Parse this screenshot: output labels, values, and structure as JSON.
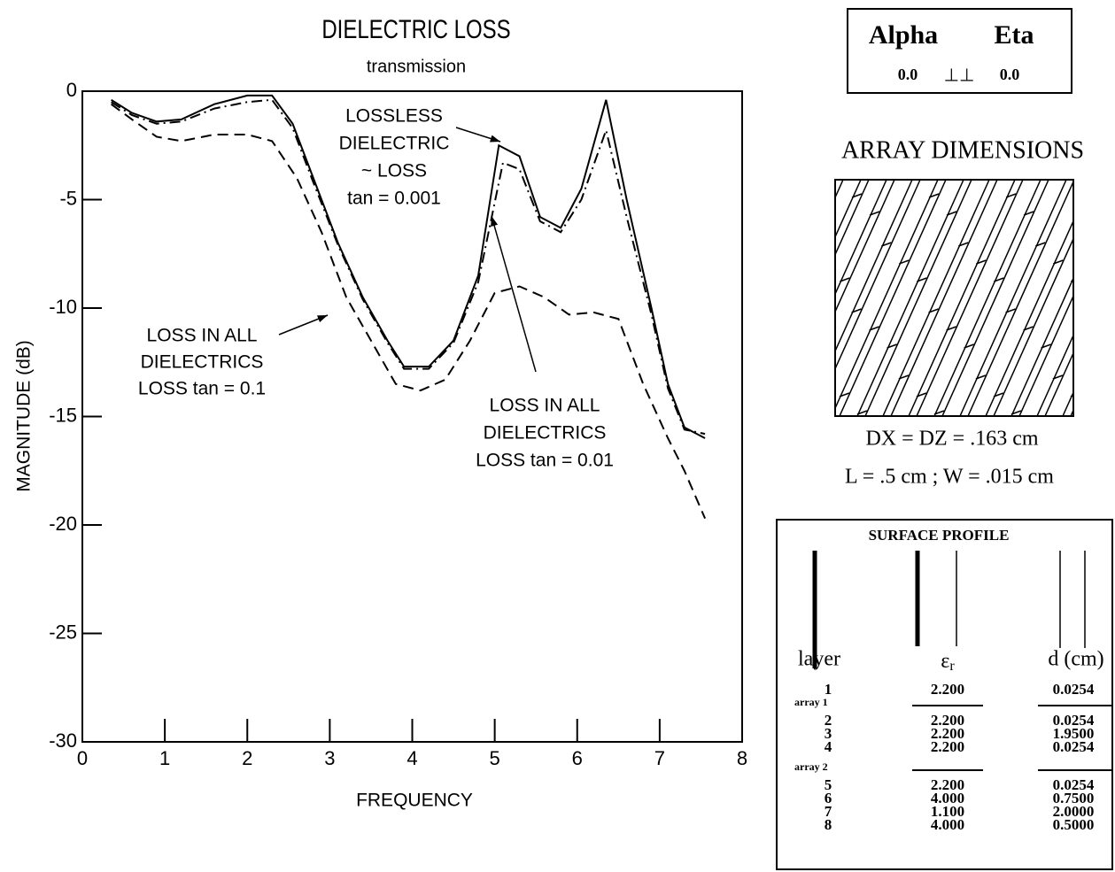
{
  "chart_data": {
    "type": "line",
    "title": "DIELECTRIC LOSS",
    "subtitle": "transmission",
    "x_label": "FREQUENCY",
    "y_label": "MAGNITUDE (dB)",
    "xlim": [
      0,
      8
    ],
    "xticks": [
      0,
      1,
      2,
      3,
      4,
      5,
      6,
      7,
      8
    ],
    "ylim": [
      -30,
      0
    ],
    "yticks": [
      0,
      -5,
      -10,
      -15,
      -20,
      -25,
      -30
    ],
    "grid": false,
    "series": [
      {
        "color": "#000000",
        "line_style": "solid",
        "x": [
          0.35,
          0.6,
          0.9,
          1.2,
          1.6,
          2.0,
          2.3,
          2.55,
          2.8,
          3.1,
          3.4,
          3.7,
          3.9,
          4.2,
          4.5,
          4.8,
          5.05,
          5.3,
          5.55,
          5.8,
          6.05,
          6.35,
          6.6,
          6.9,
          7.1,
          7.3,
          7.55
        ],
        "values": [
          -0.4,
          -1.0,
          -1.4,
          -1.3,
          -0.6,
          -0.2,
          -0.2,
          -1.5,
          -4.0,
          -7.0,
          -9.5,
          -11.5,
          -12.7,
          -12.7,
          -11.5,
          -8.5,
          -2.5,
          -3.0,
          -5.8,
          -6.3,
          -4.5,
          -0.4,
          -5.0,
          -10.0,
          -13.5,
          -15.5,
          -16.0
        ]
      },
      {
        "color": "#000000",
        "line_style": "dashdot",
        "x": [
          0.35,
          0.6,
          0.9,
          1.2,
          1.6,
          2.0,
          2.3,
          2.55,
          2.8,
          3.1,
          3.4,
          3.7,
          3.9,
          4.2,
          4.5,
          4.8,
          5.1,
          5.3,
          5.55,
          5.8,
          6.05,
          6.35,
          6.6,
          6.9,
          7.1,
          7.3,
          7.55
        ],
        "values": [
          -0.5,
          -1.1,
          -1.5,
          -1.4,
          -0.8,
          -0.5,
          -0.4,
          -1.7,
          -4.2,
          -7.1,
          -9.6,
          -11.6,
          -12.8,
          -12.8,
          -11.6,
          -8.8,
          -3.3,
          -3.6,
          -6.0,
          -6.5,
          -5.0,
          -1.8,
          -5.8,
          -10.3,
          -13.7,
          -15.6,
          -15.8
        ]
      },
      {
        "color": "#000000",
        "line_style": "dashed",
        "x": [
          0.35,
          0.6,
          0.9,
          1.2,
          1.6,
          2.0,
          2.3,
          2.6,
          2.9,
          3.2,
          3.5,
          3.8,
          4.1,
          4.4,
          4.7,
          5.0,
          5.3,
          5.6,
          5.9,
          6.2,
          6.5,
          6.8,
          7.1,
          7.3,
          7.55
        ],
        "values": [
          -0.6,
          -1.3,
          -2.1,
          -2.3,
          -2.0,
          -2.0,
          -2.3,
          -4.0,
          -6.5,
          -9.5,
          -11.5,
          -13.5,
          -13.8,
          -13.3,
          -11.5,
          -9.3,
          -9.0,
          -9.5,
          -10.3,
          -10.2,
          -10.5,
          -13.5,
          -16.0,
          -17.5,
          -19.7
        ]
      }
    ],
    "annotations": [
      {
        "lines": [
          "LOSSLESS",
          "DIELECTRIC",
          "~    LOSS",
          "tan = 0.001"
        ]
      },
      {
        "lines": [
          "LOSS IN ALL",
          "DIELECTRICS",
          "LOSS  tan = 0.1"
        ]
      },
      {
        "lines": [
          "LOSS IN ALL",
          "DIELECTRICS",
          "LOSS  tan = 0.01"
        ]
      }
    ]
  },
  "angles": {
    "alpha_label": "Alpha",
    "eta_label": "Eta",
    "alpha": "0.0",
    "symbol": "⊥⊥",
    "eta": "0.0"
  },
  "array": {
    "title": "ARRAY DIMENSIONS",
    "lines": [
      "DX = DZ = .163 cm",
      "L = .5 cm ; W = .015 cm"
    ]
  },
  "profile": {
    "title": "SURFACE PROFILE",
    "headers": {
      "layer": "layer",
      "er": "ε",
      "er_sub": "r",
      "d": "d (cm)"
    },
    "sections": [
      {
        "rows": [
          [
            "1",
            "2.200",
            "0.0254"
          ]
        ]
      },
      {
        "label": "array 1",
        "rows": [
          [
            "2",
            "2.200",
            "0.0254"
          ],
          [
            "3",
            "2.200",
            "1.9500"
          ],
          [
            "4",
            "2.200",
            "0.0254"
          ]
        ]
      },
      {
        "label": "array 2",
        "rows": [
          [
            "5",
            "2.200",
            "0.0254"
          ],
          [
            "6",
            "4.000",
            "0.7500"
          ],
          [
            "7",
            "1.100",
            "2.0000"
          ],
          [
            "8",
            "4.000",
            "0.5000"
          ]
        ]
      }
    ]
  }
}
